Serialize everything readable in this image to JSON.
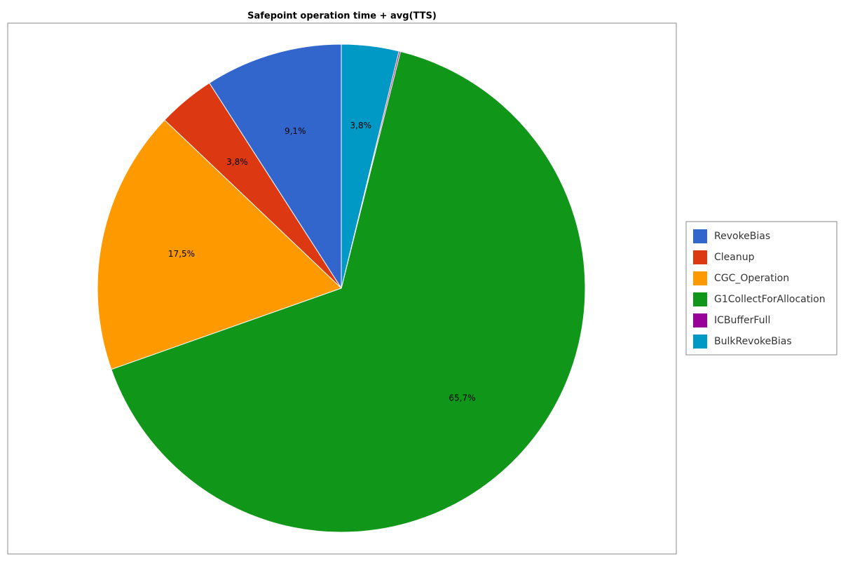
{
  "chart_data": {
    "type": "pie",
    "title": "Safepoint operation time + avg(TTS)",
    "categories": [
      "RevokeBias",
      "Cleanup",
      "CGC_Operation",
      "G1CollectForAllocation",
      "ICBufferFull",
      "BulkRevokeBias"
    ],
    "values": [
      9.1,
      3.8,
      17.5,
      65.7,
      0.1,
      3.8
    ],
    "value_labels": [
      "9,1%",
      "3,8%",
      "17,5%",
      "65,7%",
      null,
      "3,8%"
    ],
    "colors": [
      "#3366cc",
      "#dc3912",
      "#ff9900",
      "#109618",
      "#990099",
      "#0099c6"
    ],
    "legend": "right"
  }
}
